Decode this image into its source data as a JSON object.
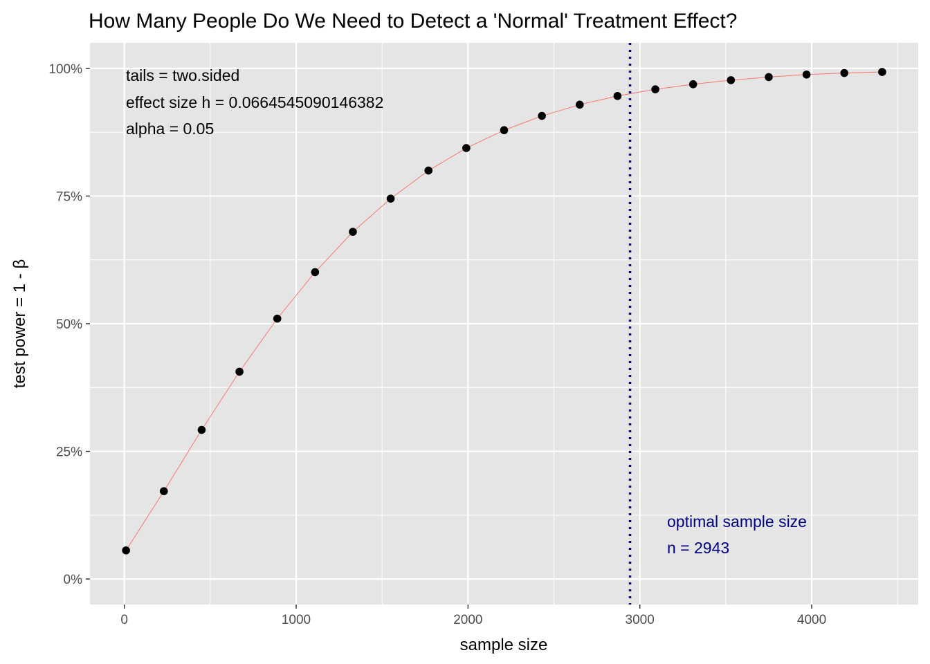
{
  "chart_data": {
    "type": "scatter",
    "title": "How Many People Do We Need to Detect a 'Normal' Treatment Effect?",
    "xlabel": "sample size",
    "ylabel_prefix": "test power = 1 - ",
    "ylabel_symbol": "β",
    "xlim": [
      -200,
      4620
    ],
    "ylim": [
      -0.05,
      1.05
    ],
    "x_ticks": [
      {
        "value": 0,
        "label": "0"
      },
      {
        "value": 1000,
        "label": "1000"
      },
      {
        "value": 2000,
        "label": "2000"
      },
      {
        "value": 3000,
        "label": "3000"
      },
      {
        "value": 4000,
        "label": "4000"
      }
    ],
    "x_minor_ticks": [
      500,
      1500,
      2500,
      3500,
      4500
    ],
    "y_ticks": [
      {
        "value": 0,
        "label": "0%"
      },
      {
        "value": 0.25,
        "label": "25%"
      },
      {
        "value": 0.5,
        "label": "50%"
      },
      {
        "value": 0.75,
        "label": "75%"
      },
      {
        "value": 1.0,
        "label": "100%"
      }
    ],
    "y_minor_ticks": [
      0.125,
      0.375,
      0.625,
      0.875
    ],
    "grid": true,
    "legend": "none",
    "series": [
      {
        "x": [
          10,
          230,
          450,
          670,
          890,
          1110,
          1330,
          1550,
          1770,
          1990,
          2210,
          2430,
          2650,
          2870,
          3090,
          3310,
          3530,
          3750,
          3970,
          4190,
          4410
        ],
        "y": [
          0.056,
          0.172,
          0.292,
          0.406,
          0.51,
          0.601,
          0.68,
          0.745,
          0.8,
          0.844,
          0.879,
          0.907,
          0.929,
          0.946,
          0.959,
          0.969,
          0.977,
          0.983,
          0.988,
          0.991,
          0.993
        ]
      }
    ],
    "line_color": "#f8766d",
    "point_color": "#000000",
    "vline": {
      "x": 2943,
      "color": "#000080"
    },
    "annotations": {
      "params": [
        "tails = two.sided",
        "effect size h = 0.0664545090146382",
        "alpha = 0.05"
      ],
      "optimal": [
        "optimal sample size",
        "n = 2943"
      ],
      "optimal_color": "#000080"
    },
    "panel_background": "#e5e5e5",
    "grid_color": "#ffffff"
  }
}
